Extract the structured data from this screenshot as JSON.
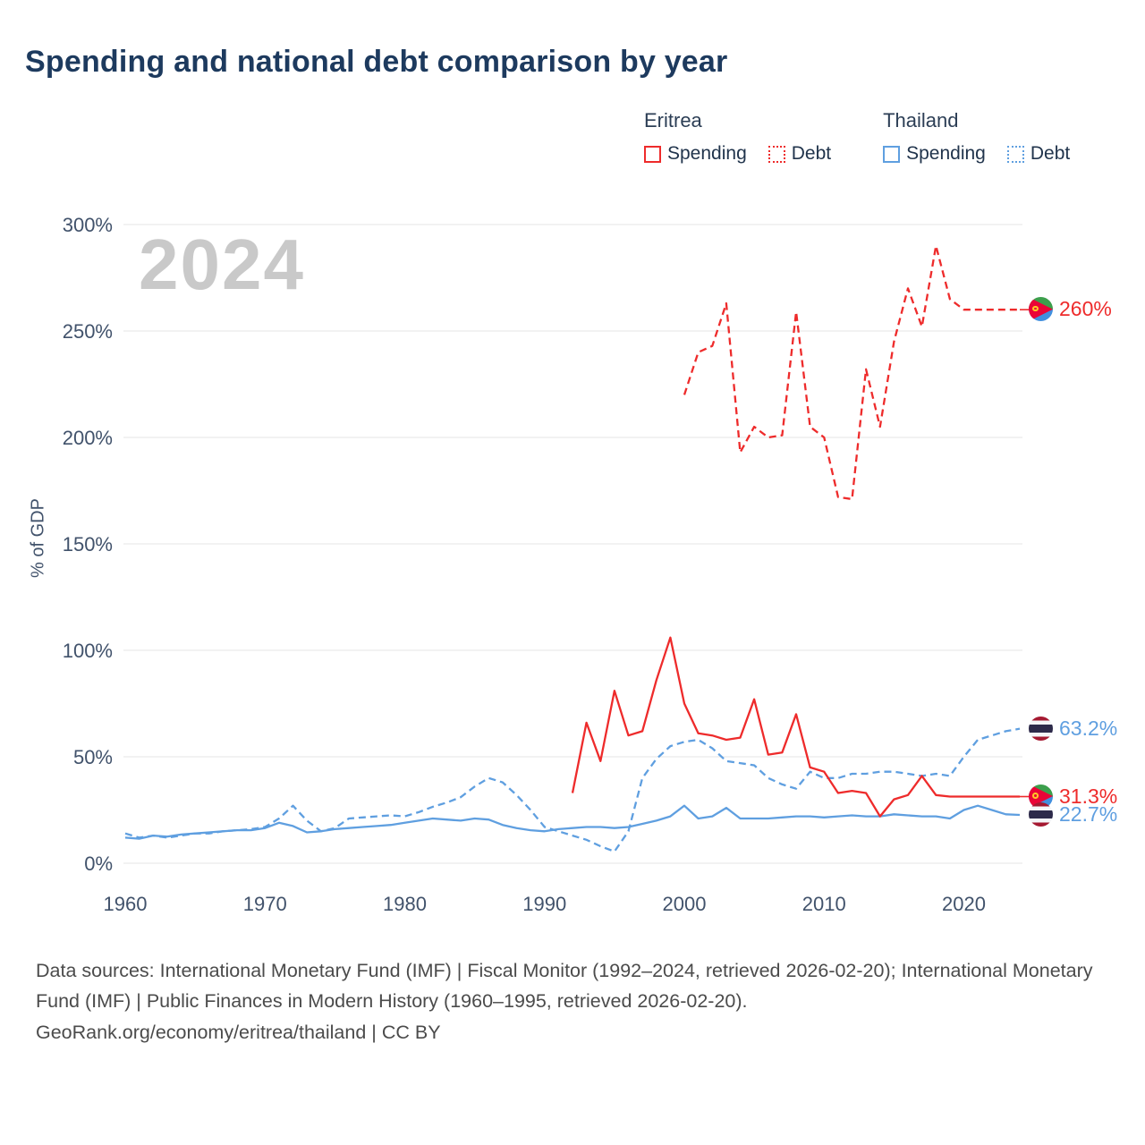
{
  "title": "Spending and national debt comparison by year",
  "legend": {
    "groups": [
      {
        "title": "Eritrea",
        "items": [
          {
            "label": "Spending",
            "style": "solid",
            "color": "#ee2b2b"
          },
          {
            "label": "Debt",
            "style": "dotted",
            "color": "#ee2b2b"
          }
        ]
      },
      {
        "title": "Thailand",
        "items": [
          {
            "label": "Spending",
            "style": "solid",
            "color": "#5f9fe0"
          },
          {
            "label": "Debt",
            "style": "dotted",
            "color": "#5f9fe0"
          }
        ]
      }
    ]
  },
  "footer": {
    "sources": "Data sources: International Monetary Fund (IMF) | Fiscal Monitor (1992–2024, retrieved 2026-02-20); International Monetary Fund (IMF) | Public Finances in Modern History (1960–1995, retrieved 2026-02-20).",
    "attribution": "GeoRank.org/economy/eritrea/thailand | CC BY"
  },
  "chart_data": {
    "type": "line",
    "title": "Spending and national debt comparison by year",
    "ylabel": "% of GDP",
    "watermark": "2024",
    "grid": true,
    "legend_position": "top-right",
    "xlim": [
      1958,
      2026
    ],
    "ylim": [
      0,
      300
    ],
    "x_ticks": [
      1960,
      1970,
      1980,
      1990,
      2000,
      2010,
      2020
    ],
    "y_ticks": [
      0,
      50,
      100,
      150,
      200,
      250,
      300
    ],
    "y_tick_suffix": "%",
    "colors": {
      "eritrea": "#ee2b2b",
      "thailand": "#5f9fe0"
    },
    "series": [
      {
        "id": "thailand-debt",
        "name": "Thailand Debt",
        "color": "#5f9fe0",
        "dash": "dashed",
        "x": [
          1960,
          1961,
          1962,
          1963,
          1964,
          1965,
          1966,
          1967,
          1968,
          1969,
          1970,
          1971,
          1972,
          1973,
          1974,
          1975,
          1976,
          1977,
          1978,
          1979,
          1980,
          1981,
          1982,
          1983,
          1984,
          1985,
          1986,
          1987,
          1988,
          1989,
          1990,
          1991,
          1992,
          1993,
          1994,
          1995,
          1996,
          1997,
          1998,
          1999,
          2000,
          2001,
          2002,
          2003,
          2004,
          2005,
          2006,
          2007,
          2008,
          2009,
          2010,
          2011,
          2012,
          2013,
          2014,
          2015,
          2016,
          2017,
          2018,
          2019,
          2020,
          2021,
          2022,
          2023,
          2024
        ],
        "y": [
          14,
          12,
          13,
          12,
          13,
          14,
          14,
          15,
          15.5,
          16,
          17,
          21,
          27,
          20,
          15,
          16.5,
          21,
          21.5,
          22,
          22.5,
          22,
          24,
          26.5,
          28.5,
          31,
          36,
          40,
          38,
          32,
          25,
          17,
          15,
          13,
          11,
          8,
          5.5,
          15,
          40,
          49,
          55,
          57,
          58,
          54,
          48,
          47,
          46,
          40,
          37,
          35,
          43,
          40,
          40,
          42,
          42,
          43,
          43,
          42,
          41,
          42,
          41,
          50,
          58,
          60,
          62,
          63.2
        ]
      },
      {
        "id": "thailand-spending",
        "name": "Thailand Spending",
        "color": "#5f9fe0",
        "dash": "solid",
        "x": [
          1960,
          1961,
          1962,
          1963,
          1964,
          1965,
          1966,
          1967,
          1968,
          1969,
          1970,
          1971,
          1972,
          1973,
          1974,
          1975,
          1976,
          1977,
          1978,
          1979,
          1980,
          1981,
          1982,
          1983,
          1984,
          1985,
          1986,
          1987,
          1988,
          1989,
          1990,
          1991,
          1992,
          1993,
          1994,
          1995,
          1996,
          1997,
          1998,
          1999,
          2000,
          2001,
          2002,
          2003,
          2004,
          2005,
          2006,
          2007,
          2008,
          2009,
          2010,
          2011,
          2012,
          2013,
          2014,
          2015,
          2016,
          2017,
          2018,
          2019,
          2020,
          2021,
          2022,
          2023,
          2024
        ],
        "y": [
          12,
          11.5,
          13,
          12.5,
          13.5,
          14,
          14.5,
          15,
          15.5,
          15.5,
          16.5,
          19,
          17.5,
          14.5,
          15,
          16,
          16.5,
          17,
          17.5,
          18,
          19,
          20,
          21,
          20.5,
          20,
          21,
          20.5,
          18,
          16.5,
          15.5,
          15,
          16,
          16.5,
          17,
          17,
          16.5,
          17,
          18.5,
          20,
          22,
          27,
          21,
          22,
          26,
          21,
          21,
          21,
          21.5,
          22,
          22,
          21.5,
          22,
          22.5,
          22,
          22,
          23,
          22.5,
          22,
          22,
          21,
          25,
          27,
          25,
          23,
          22.7
        ]
      },
      {
        "id": "eritrea-debt",
        "name": "Eritrea Debt",
        "color": "#ee2b2b",
        "dash": "dashed",
        "x": [
          2000,
          2001,
          2002,
          2003,
          2004,
          2005,
          2006,
          2007,
          2008,
          2009,
          2010,
          2011,
          2012,
          2013,
          2014,
          2015,
          2016,
          2017,
          2018,
          2019,
          2020,
          2021,
          2022,
          2023,
          2024
        ],
        "y": [
          220,
          240,
          243,
          263,
          193,
          205,
          200,
          201,
          259,
          205,
          200,
          172,
          171,
          232,
          205,
          245,
          270,
          252,
          290,
          265,
          260,
          260,
          260,
          260,
          260
        ]
      },
      {
        "id": "eritrea-spending",
        "name": "Eritrea Spending",
        "color": "#ee2b2b",
        "dash": "solid",
        "x": [
          1992,
          1993,
          1994,
          1995,
          1996,
          1997,
          1998,
          1999,
          2000,
          2001,
          2002,
          2003,
          2004,
          2005,
          2006,
          2007,
          2008,
          2009,
          2010,
          2011,
          2012,
          2013,
          2014,
          2015,
          2016,
          2017,
          2018,
          2019,
          2020,
          2021,
          2022,
          2023,
          2024
        ],
        "y": [
          33,
          66,
          48,
          81,
          60,
          62,
          86,
          106,
          75,
          61,
          60,
          58,
          59,
          77,
          51,
          52,
          70,
          45,
          43,
          33,
          34,
          33,
          22,
          30,
          32,
          41,
          32,
          31.3,
          31.3,
          31.3,
          31.3,
          31.3,
          31.3
        ]
      }
    ],
    "end_labels": [
      {
        "text": "260%",
        "value": 260,
        "color": "#ee2b2b",
        "flag": "eritrea",
        "connector": true
      },
      {
        "text": "63.2%",
        "value": 63.2,
        "color": "#5f9fe0",
        "flag": "thailand",
        "connector": false
      },
      {
        "text": "31.3%",
        "value": 31.3,
        "color": "#ee2b2b",
        "flag": "eritrea",
        "connector": true
      },
      {
        "text": "22.7%",
        "value": 22.7,
        "color": "#5f9fe0",
        "flag": "thailand",
        "connector": false
      }
    ]
  }
}
